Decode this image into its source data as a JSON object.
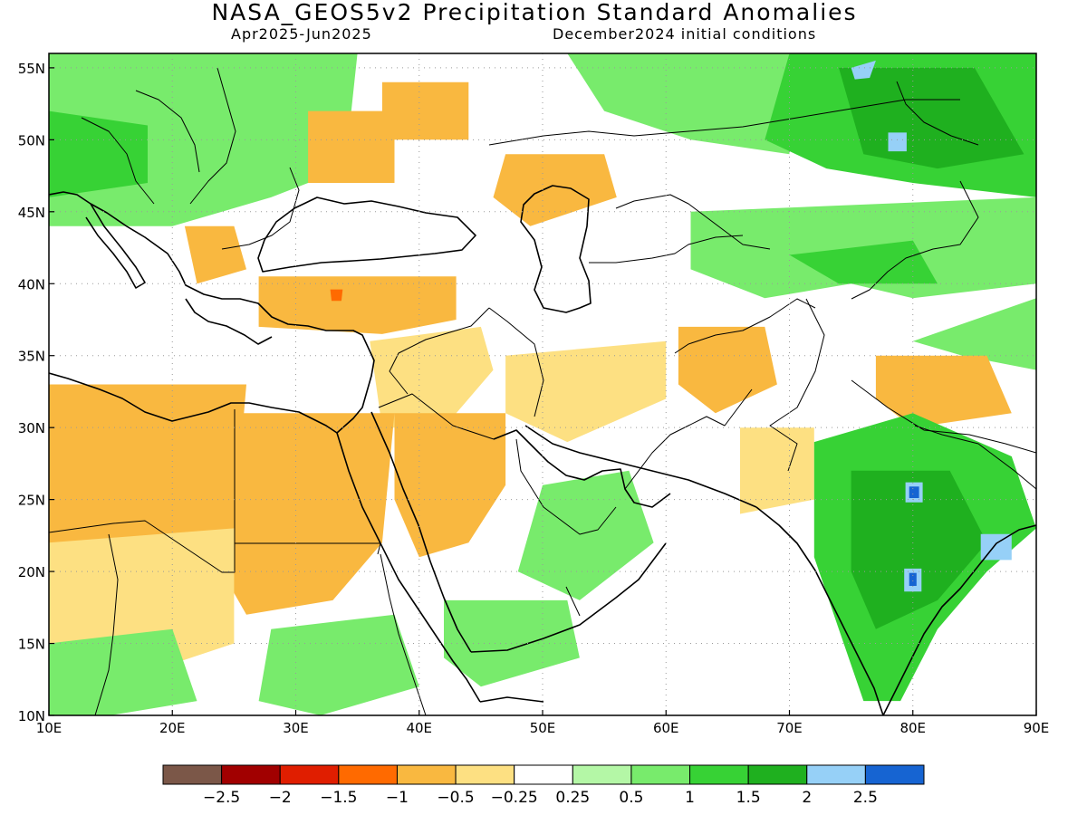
{
  "header": {
    "title": "NASA_GEOS5v2 Precipitation Standard Anomalies",
    "period": "Apr2025-Jun2025",
    "initial_conditions": "December2024 initial conditions"
  },
  "chart_data": {
    "type": "heatmap",
    "x_range": [
      10,
      90
    ],
    "y_range": [
      10,
      56
    ],
    "x_ticks": [
      "10E",
      "20E",
      "30E",
      "40E",
      "50E",
      "60E",
      "70E",
      "80E",
      "90E"
    ],
    "y_ticks": [
      "10N",
      "15N",
      "20N",
      "25N",
      "30N",
      "35N",
      "40N",
      "45N",
      "50N",
      "55N"
    ],
    "colorbar": {
      "colors": [
        "#7b5748",
        "#a10000",
        "#e01e00",
        "#ff6a00",
        "#f9b840",
        "#fde082",
        "#ffffff",
        "#b4f7a6",
        "#78eb6c",
        "#37d235",
        "#1fb01f",
        "#96d0f7",
        "#1664d2"
      ],
      "labels": [
        "-2.5",
        "-2",
        "-1.5",
        "-1",
        "-0.5",
        "-0.25",
        "0.25",
        "0.5",
        "1",
        "1.5",
        "2",
        "2.5"
      ]
    },
    "regions": [
      {
        "name": "western-russia-green",
        "color": "#78eb6c",
        "pts": [
          [
            52,
            56
          ],
          [
            70,
            56
          ],
          [
            70,
            49
          ],
          [
            62,
            50
          ],
          [
            55,
            52
          ]
        ]
      },
      {
        "name": "siberia-green",
        "color": "#37d235",
        "pts": [
          [
            70,
            56
          ],
          [
            90,
            56
          ],
          [
            90,
            46
          ],
          [
            80,
            47
          ],
          [
            73,
            48
          ],
          [
            68,
            50
          ]
        ]
      },
      {
        "name": "siberia-darkgreen",
        "color": "#1fb01f",
        "pts": [
          [
            74,
            55
          ],
          [
            85,
            55
          ],
          [
            89,
            49
          ],
          [
            82,
            48
          ],
          [
            76,
            49
          ]
        ]
      },
      {
        "name": "siberia-blue",
        "color": "#96d0f7",
        "pts": [
          [
            78,
            50.5
          ],
          [
            79.5,
            50.5
          ],
          [
            79.5,
            49.2
          ],
          [
            78,
            49.2
          ]
        ]
      },
      {
        "name": "siberia-blue-2",
        "color": "#96d0f7",
        "pts": [
          [
            75,
            55
          ],
          [
            77,
            55.5
          ],
          [
            76.5,
            54.3
          ],
          [
            75.3,
            54.2
          ]
        ]
      },
      {
        "name": "central-asia-green",
        "color": "#78eb6c",
        "pts": [
          [
            62,
            45
          ],
          [
            90,
            46
          ],
          [
            90,
            40
          ],
          [
            80,
            39
          ],
          [
            75,
            40
          ],
          [
            68,
            39
          ],
          [
            62,
            41
          ]
        ]
      },
      {
        "name": "kazakhstan-green",
        "color": "#37d235",
        "pts": [
          [
            70,
            42
          ],
          [
            80,
            43
          ],
          [
            82,
            40
          ],
          [
            74,
            40
          ]
        ]
      },
      {
        "name": "tibet-green",
        "color": "#78eb6c",
        "pts": [
          [
            80,
            36
          ],
          [
            90,
            39
          ],
          [
            90,
            34
          ],
          [
            84,
            35
          ]
        ]
      },
      {
        "name": "europe-green",
        "color": "#78eb6c",
        "pts": [
          [
            10,
            56
          ],
          [
            35,
            56
          ],
          [
            34,
            48
          ],
          [
            28,
            46
          ],
          [
            20,
            44
          ],
          [
            10,
            44
          ]
        ]
      },
      {
        "name": "europe-darkgreen",
        "color": "#37d235",
        "pts": [
          [
            10,
            52
          ],
          [
            18,
            51
          ],
          [
            18,
            47
          ],
          [
            10,
            46
          ]
        ]
      },
      {
        "name": "ukraine-orange",
        "color": "#f9b840",
        "pts": [
          [
            31,
            52
          ],
          [
            38,
            52
          ],
          [
            38,
            47
          ],
          [
            31,
            47
          ]
        ]
      },
      {
        "name": "russia-orange",
        "color": "#f9b840",
        "pts": [
          [
            37,
            54
          ],
          [
            44,
            54
          ],
          [
            44,
            50
          ],
          [
            37,
            50
          ]
        ]
      },
      {
        "name": "volga-orange",
        "color": "#f9b840",
        "pts": [
          [
            47,
            49
          ],
          [
            55,
            49
          ],
          [
            56,
            46
          ],
          [
            49,
            44
          ],
          [
            46,
            46
          ]
        ]
      },
      {
        "name": "balkans-orange",
        "color": "#f9b840",
        "pts": [
          [
            21,
            44
          ],
          [
            25,
            44
          ],
          [
            26,
            41
          ],
          [
            22,
            40
          ]
        ]
      },
      {
        "name": "turkey-orange",
        "color": "#f9b840",
        "pts": [
          [
            27,
            40.5
          ],
          [
            43,
            40.5
          ],
          [
            43,
            37.5
          ],
          [
            37,
            36.5
          ],
          [
            27,
            37
          ]
        ]
      },
      {
        "name": "turkey-darkorange",
        "color": "#ff6a00",
        "pts": [
          [
            32.8,
            39.6
          ],
          [
            33.8,
            39.6
          ],
          [
            33.7,
            38.8
          ],
          [
            32.9,
            38.8
          ]
        ]
      },
      {
        "name": "levant-yellow",
        "color": "#fde082",
        "pts": [
          [
            36,
            36
          ],
          [
            45,
            37
          ],
          [
            46,
            34
          ],
          [
            42,
            30
          ],
          [
            37,
            30
          ]
        ]
      },
      {
        "name": "libya-orange",
        "color": "#f9b840",
        "pts": [
          [
            10,
            33
          ],
          [
            26,
            33
          ],
          [
            25,
            23
          ],
          [
            20,
            20
          ],
          [
            10,
            22
          ]
        ]
      },
      {
        "name": "egypt-orange",
        "color": "#f9b840",
        "pts": [
          [
            24,
            31
          ],
          [
            38,
            31
          ],
          [
            37,
            22
          ],
          [
            33,
            18
          ],
          [
            26,
            17
          ],
          [
            24,
            20
          ]
        ]
      },
      {
        "name": "sahara-yellow",
        "color": "#fde082",
        "pts": [
          [
            10,
            22
          ],
          [
            25,
            23
          ],
          [
            25,
            15
          ],
          [
            18,
            13
          ],
          [
            10,
            14
          ]
        ]
      },
      {
        "name": "arabia-orange",
        "color": "#f9b840",
        "pts": [
          [
            38,
            31
          ],
          [
            47,
            31
          ],
          [
            47,
            26
          ],
          [
            44,
            22
          ],
          [
            40,
            21
          ],
          [
            38,
            25
          ]
        ]
      },
      {
        "name": "iran-yellow",
        "color": "#fde082",
        "pts": [
          [
            47,
            35
          ],
          [
            60,
            36
          ],
          [
            60,
            32
          ],
          [
            52,
            29
          ],
          [
            47,
            31
          ]
        ]
      },
      {
        "name": "afghanistan-orange",
        "color": "#f9b840",
        "pts": [
          [
            61,
            37
          ],
          [
            68,
            37
          ],
          [
            69,
            33
          ],
          [
            64,
            31
          ],
          [
            61,
            33
          ]
        ]
      },
      {
        "name": "pakistan-yellow",
        "color": "#fde082",
        "pts": [
          [
            66,
            30
          ],
          [
            72,
            30
          ],
          [
            72,
            25
          ],
          [
            66,
            24
          ]
        ]
      },
      {
        "name": "himalaya-orange",
        "color": "#f9b840",
        "pts": [
          [
            77,
            35
          ],
          [
            86,
            35
          ],
          [
            88,
            31
          ],
          [
            80,
            30
          ],
          [
            77,
            32
          ]
        ]
      },
      {
        "name": "arabia-green",
        "color": "#78eb6c",
        "pts": [
          [
            50,
            26
          ],
          [
            57,
            27
          ],
          [
            59,
            22
          ],
          [
            53,
            18
          ],
          [
            48,
            20
          ]
        ]
      },
      {
        "name": "yemen-green",
        "color": "#78eb6c",
        "pts": [
          [
            42,
            18
          ],
          [
            52,
            18
          ],
          [
            53,
            14
          ],
          [
            45,
            12
          ],
          [
            42,
            14
          ]
        ]
      },
      {
        "name": "sudan-green",
        "color": "#78eb6c",
        "pts": [
          [
            28,
            16
          ],
          [
            38,
            17
          ],
          [
            40,
            12
          ],
          [
            32,
            10
          ],
          [
            27,
            11
          ]
        ]
      },
      {
        "name": "chad-green",
        "color": "#78eb6c",
        "pts": [
          [
            10,
            15
          ],
          [
            20,
            16
          ],
          [
            22,
            11
          ],
          [
            15,
            10
          ],
          [
            10,
            10
          ]
        ]
      },
      {
        "name": "india-green",
        "color": "#37d235",
        "pts": [
          [
            72,
            29
          ],
          [
            80,
            31
          ],
          [
            88,
            28
          ],
          [
            90,
            23
          ],
          [
            86,
            20
          ],
          [
            82,
            16
          ],
          [
            79,
            11
          ],
          [
            76,
            11
          ],
          [
            74,
            16
          ],
          [
            72,
            21
          ]
        ]
      },
      {
        "name": "india-darkgreen",
        "color": "#1fb01f",
        "pts": [
          [
            75,
            27
          ],
          [
            83,
            27
          ],
          [
            86,
            22
          ],
          [
            82,
            18
          ],
          [
            77,
            16
          ],
          [
            75,
            20
          ]
        ]
      },
      {
        "name": "india-blue-1",
        "color": "#96d0f7",
        "pts": [
          [
            79.4,
            26.2
          ],
          [
            80.8,
            26.2
          ],
          [
            80.8,
            24.8
          ],
          [
            79.4,
            24.8
          ]
        ]
      },
      {
        "name": "india-darkblue-1",
        "color": "#1664d2",
        "pts": [
          [
            79.7,
            25.9
          ],
          [
            80.5,
            25.9
          ],
          [
            80.5,
            25.1
          ],
          [
            79.7,
            25.1
          ]
        ]
      },
      {
        "name": "india-blue-2",
        "color": "#96d0f7",
        "pts": [
          [
            79.3,
            20.2
          ],
          [
            80.7,
            20.2
          ],
          [
            80.7,
            18.6
          ],
          [
            79.3,
            18.6
          ]
        ]
      },
      {
        "name": "india-darkblue-2",
        "color": "#1664d2",
        "pts": [
          [
            79.7,
            19.9
          ],
          [
            80.3,
            19.9
          ],
          [
            80.3,
            19.0
          ],
          [
            79.7,
            19.0
          ]
        ]
      },
      {
        "name": "india-blue-3",
        "color": "#96d0f7",
        "pts": [
          [
            85.5,
            22.6
          ],
          [
            88,
            22.6
          ],
          [
            88,
            20.8
          ],
          [
            85.5,
            20.8
          ]
        ]
      }
    ]
  }
}
